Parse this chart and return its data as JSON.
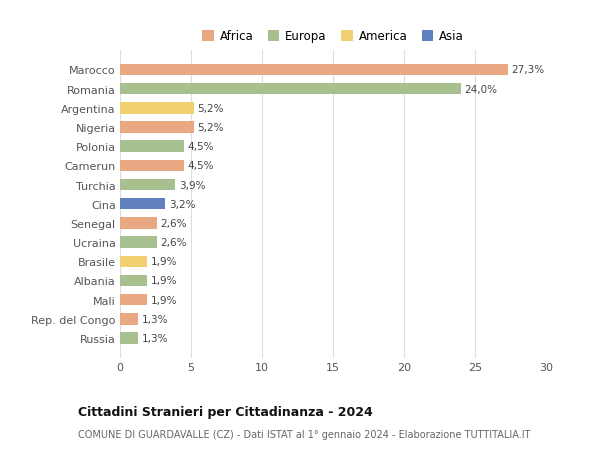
{
  "categories": [
    "Marocco",
    "Romania",
    "Argentina",
    "Nigeria",
    "Polonia",
    "Camerun",
    "Turchia",
    "Cina",
    "Senegal",
    "Ucraina",
    "Brasile",
    "Albania",
    "Mali",
    "Rep. del Congo",
    "Russia"
  ],
  "values": [
    27.3,
    24.0,
    5.2,
    5.2,
    4.5,
    4.5,
    3.9,
    3.2,
    2.6,
    2.6,
    1.9,
    1.9,
    1.9,
    1.3,
    1.3
  ],
  "labels": [
    "27,3%",
    "24,0%",
    "5,2%",
    "5,2%",
    "4,5%",
    "4,5%",
    "3,9%",
    "3,2%",
    "2,6%",
    "2,6%",
    "1,9%",
    "1,9%",
    "1,9%",
    "1,3%",
    "1,3%"
  ],
  "continents": [
    "Africa",
    "Europa",
    "America",
    "Africa",
    "Europa",
    "Africa",
    "Europa",
    "Asia",
    "Africa",
    "Europa",
    "America",
    "Europa",
    "Africa",
    "Africa",
    "Europa"
  ],
  "colors": {
    "Africa": "#E8A882",
    "Europa": "#A8C090",
    "America": "#F0D070",
    "Asia": "#6080C0"
  },
  "legend_order": [
    "Africa",
    "Europa",
    "America",
    "Asia"
  ],
  "title": "Cittadini Stranieri per Cittadinanza - 2024",
  "subtitle": "COMUNE DI GUARDAVALLE (CZ) - Dati ISTAT al 1° gennaio 2024 - Elaborazione TUTTITALIA.IT",
  "xlim": [
    0,
    30
  ],
  "xticks": [
    0,
    5,
    10,
    15,
    20,
    25,
    30
  ],
  "background_color": "#ffffff",
  "grid_color": "#dddddd"
}
